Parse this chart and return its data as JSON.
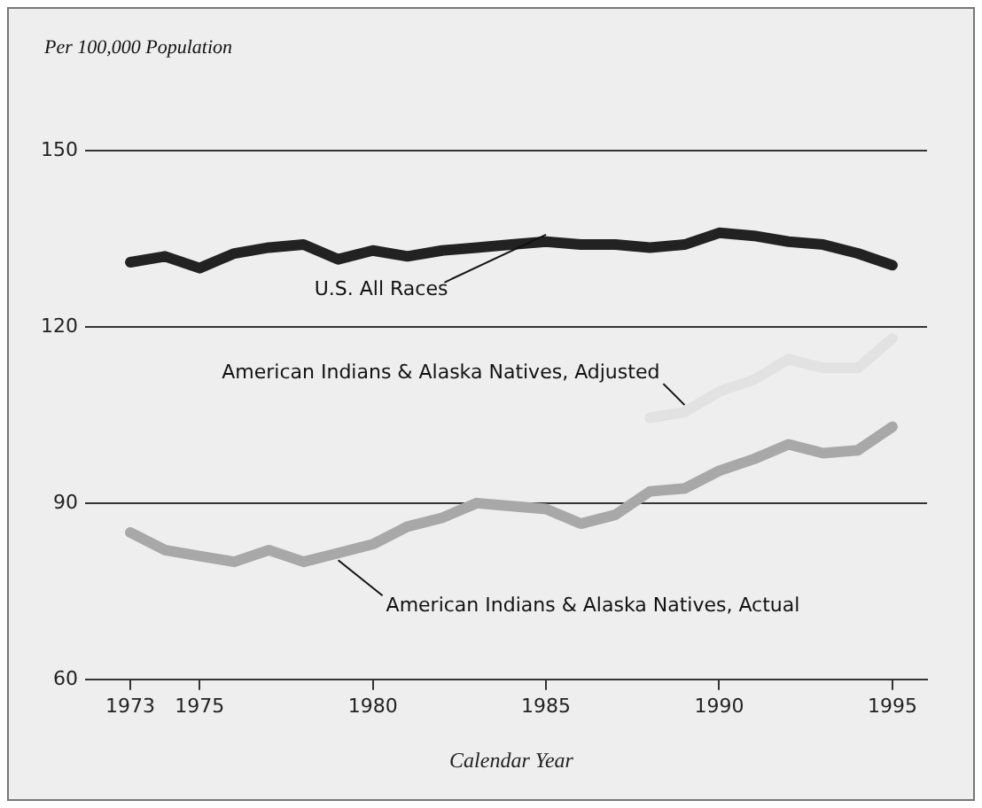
{
  "chart_data": {
    "type": "line",
    "ylabel": "Per 100,000 Population",
    "xlabel": "Calendar Year",
    "x": [
      1973,
      1974,
      1975,
      1976,
      1977,
      1978,
      1979,
      1980,
      1981,
      1982,
      1983,
      1984,
      1985,
      1986,
      1987,
      1988,
      1989,
      1990,
      1991,
      1992,
      1993,
      1994,
      1995
    ],
    "series": [
      {
        "name": "U.S. All Races",
        "color": "#222222",
        "values": [
          131,
          132,
          130,
          132.5,
          133.5,
          134,
          131.5,
          133,
          132,
          133,
          133.5,
          134,
          134.5,
          134,
          134,
          133.5,
          134,
          136,
          135.5,
          134.5,
          134,
          132.5,
          130.5
        ]
      },
      {
        "name": "American Indians & Alaska Natives, Adjusted",
        "color": "#e2e2e2",
        "values": [
          null,
          null,
          null,
          null,
          null,
          null,
          null,
          null,
          null,
          null,
          null,
          null,
          null,
          null,
          null,
          104.5,
          105.5,
          109,
          111,
          114.5,
          113,
          113,
          118
        ]
      },
      {
        "name": "American Indians & Alaska Natives, Actual",
        "color": "#a8a8a8",
        "values": [
          85,
          82,
          81,
          80,
          82,
          80,
          81.5,
          83,
          86,
          87.5,
          90,
          89.5,
          89,
          86.5,
          88,
          92,
          92.5,
          95.5,
          97.5,
          100,
          98.5,
          99,
          103
        ]
      }
    ],
    "xlim": [
      1972,
      1996
    ],
    "xticks": [
      1973,
      1975,
      1980,
      1985,
      1990,
      1995
    ],
    "ylim": [
      60,
      150
    ],
    "yticks": [
      60,
      90,
      120,
      150
    ],
    "grid": "y",
    "legend": false,
    "marker": "none",
    "line_style": "solid"
  }
}
